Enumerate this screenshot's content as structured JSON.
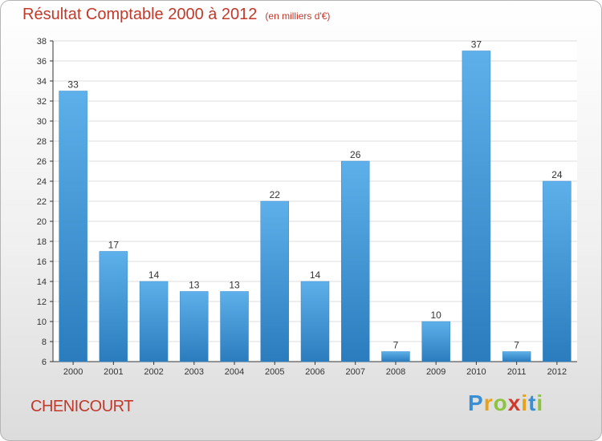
{
  "header": {
    "title": "Résultat Comptable 2000 à 2012",
    "subtitle": "(en milliers d'€)"
  },
  "commune": "CHENICOURT",
  "logo": "Proxiti",
  "colors": {
    "bar_light": "#5eb0ea",
    "bar_dark": "#2a7cbd",
    "title": "#c0392b",
    "axis": "#333333",
    "grid": "#dddddd"
  },
  "chart_data": {
    "type": "bar",
    "categories": [
      "2000",
      "2001",
      "2002",
      "2003",
      "2004",
      "2005",
      "2006",
      "2007",
      "2008",
      "2009",
      "2010",
      "2011",
      "2012"
    ],
    "values": [
      33,
      17,
      14,
      13,
      13,
      22,
      14,
      26,
      7,
      10,
      37,
      7,
      24
    ],
    "ylim": [
      6,
      38
    ],
    "yticks": [
      6,
      8,
      10,
      12,
      14,
      16,
      18,
      20,
      22,
      24,
      26,
      28,
      30,
      32,
      34,
      36,
      38
    ],
    "title": "Résultat Comptable 2000 à 2012",
    "xlabel": "",
    "ylabel": "",
    "grid": true
  }
}
